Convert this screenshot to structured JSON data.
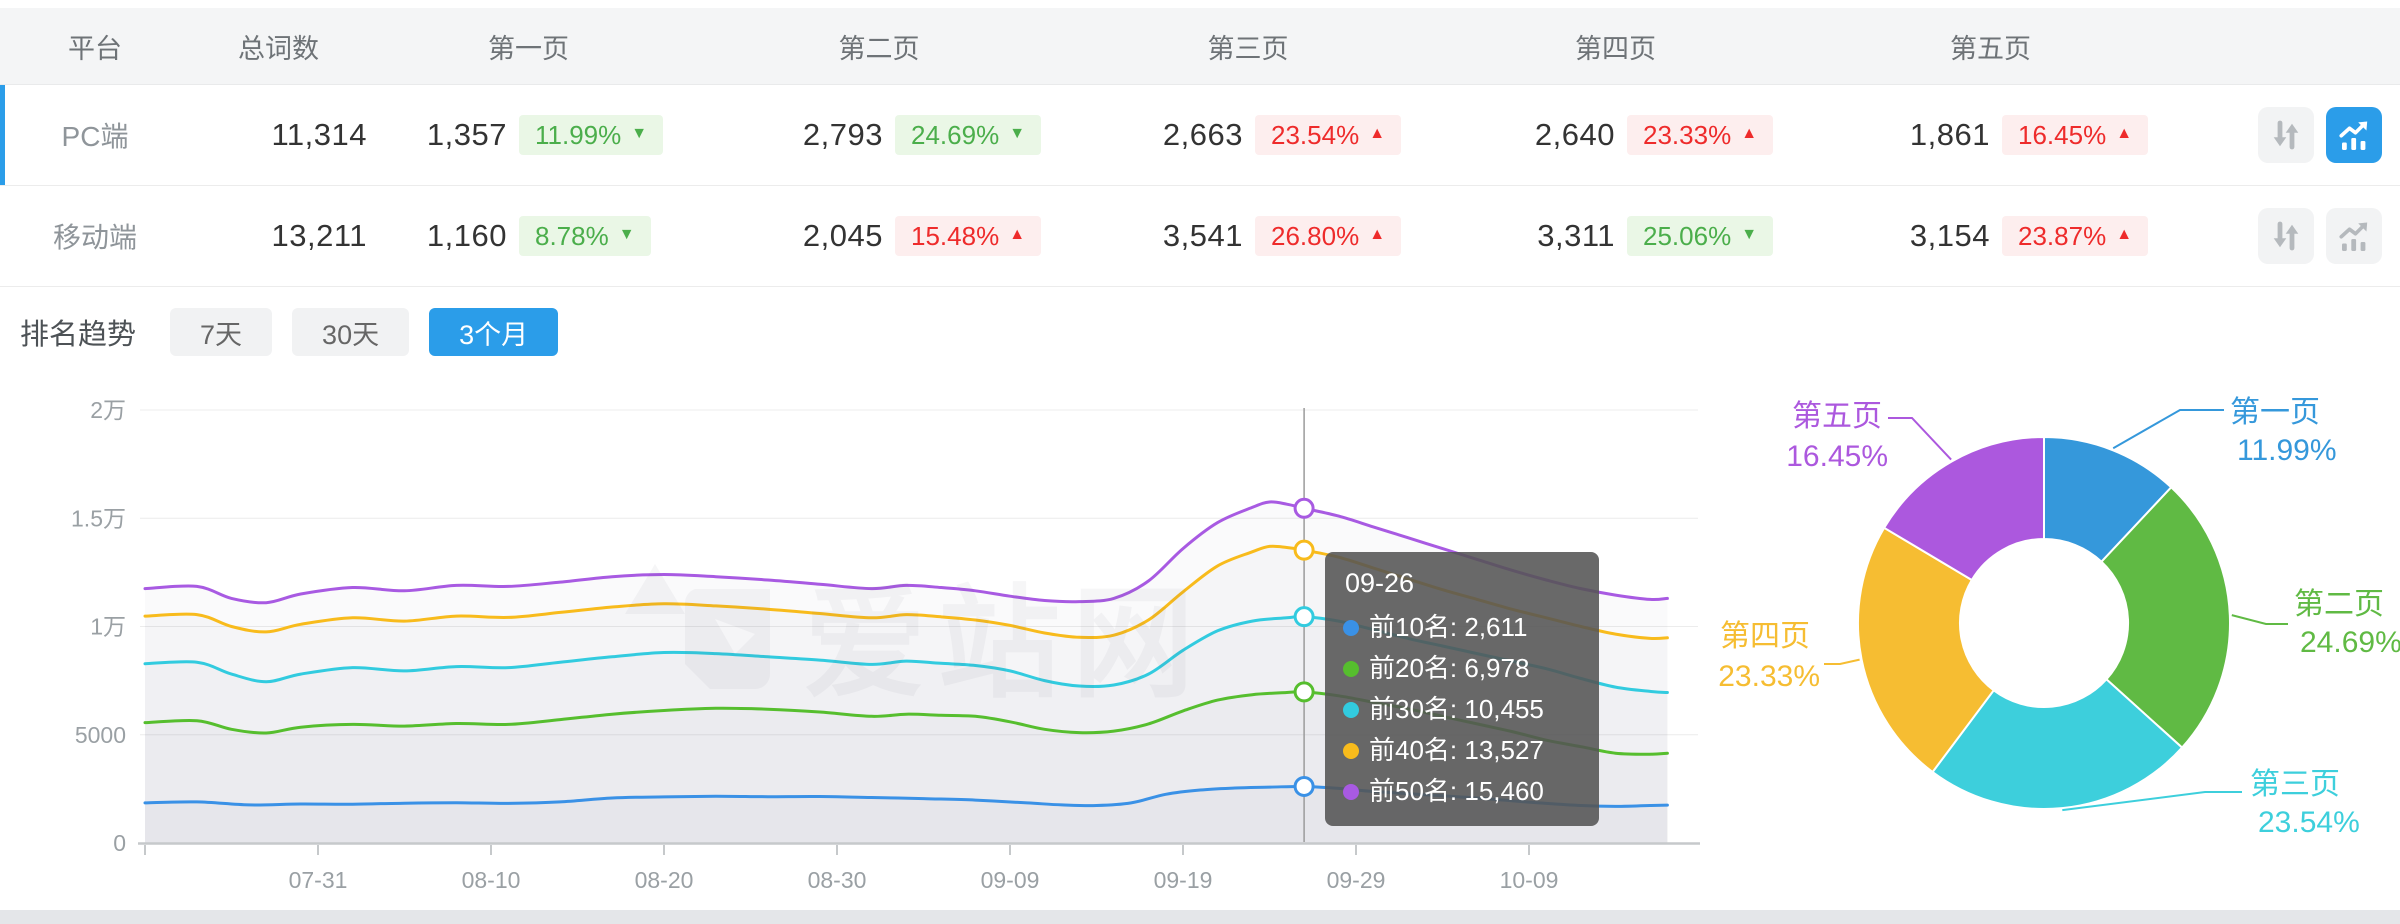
{
  "table": {
    "headers": [
      "平台",
      "总词数",
      "第一页",
      "第二页",
      "第三页",
      "第四页",
      "第五页"
    ],
    "rows": [
      {
        "platform": "PC端",
        "total": "11,314",
        "selected": true,
        "trend_active": true,
        "pages": [
          {
            "value": "1,357",
            "percent": "11.99%",
            "direction": "down",
            "tone": "green"
          },
          {
            "value": "2,793",
            "percent": "24.69%",
            "direction": "down",
            "tone": "green"
          },
          {
            "value": "2,663",
            "percent": "23.54%",
            "direction": "up",
            "tone": "red"
          },
          {
            "value": "2,640",
            "percent": "23.33%",
            "direction": "up",
            "tone": "red"
          },
          {
            "value": "1,861",
            "percent": "16.45%",
            "direction": "up",
            "tone": "red"
          }
        ]
      },
      {
        "platform": "移动端",
        "total": "13,211",
        "selected": false,
        "trend_active": false,
        "pages": [
          {
            "value": "1,160",
            "percent": "8.78%",
            "direction": "down",
            "tone": "green"
          },
          {
            "value": "2,045",
            "percent": "15.48%",
            "direction": "up",
            "tone": "red"
          },
          {
            "value": "3,541",
            "percent": "26.80%",
            "direction": "up",
            "tone": "red"
          },
          {
            "value": "3,311",
            "percent": "25.06%",
            "direction": "down",
            "tone": "green"
          },
          {
            "value": "3,154",
            "percent": "23.87%",
            "direction": "up",
            "tone": "red"
          }
        ]
      }
    ],
    "icons": {
      "sort": "sort-arrows-icon",
      "trend": "trend-chart-icon"
    }
  },
  "trend": {
    "title": "排名趋势",
    "tabs": [
      {
        "label": "7天",
        "active": false
      },
      {
        "label": "30天",
        "active": false
      },
      {
        "label": "3个月",
        "active": true
      }
    ]
  },
  "tooltip": {
    "date": "09-26",
    "items": [
      {
        "label": "前10名",
        "value": "2,611",
        "color": "#3a91e6"
      },
      {
        "label": "前20名",
        "value": "6,978",
        "color": "#56be2e"
      },
      {
        "label": "前30名",
        "value": "10,455",
        "color": "#32cbdf"
      },
      {
        "label": "前40名",
        "value": "13,527",
        "color": "#f8bb1c"
      },
      {
        "label": "前50名",
        "value": "15,460",
        "color": "#a85ae2"
      }
    ]
  },
  "watermark": "爱站网",
  "colors": {
    "accent_blue": "#2b9de9",
    "badge_green_text": "#4bae4b",
    "badge_green_bg": "#eaf7e6",
    "badge_red_text": "#ee2b2b",
    "badge_red_bg": "#fdeeee",
    "axis_text": "#9aa0a4",
    "grid_line": "#ececec"
  },
  "chart_data": [
    {
      "type": "line",
      "title": "排名趋势 (3个月)",
      "ylim": [
        0,
        20000
      ],
      "y_ticks": [
        "0",
        "5000",
        "1万",
        "1.5万",
        "2万"
      ],
      "y_tick_values": [
        0,
        5000,
        10000,
        15000,
        20000
      ],
      "x_ticks": [
        "07-31",
        "08-10",
        "08-20",
        "08-30",
        "09-09",
        "09-19",
        "09-29",
        "10-09"
      ],
      "x_tick_days": [
        10,
        20,
        30,
        40,
        50,
        60,
        70,
        80
      ],
      "grid": true,
      "highlight": {
        "date": "09-26",
        "day": 67,
        "values": [
          2611,
          6978,
          10455,
          13527,
          15460
        ]
      },
      "series": [
        {
          "name": "前10名",
          "color": "#3a91e6",
          "points": [
            [
              0,
              1850
            ],
            [
              3,
              1900
            ],
            [
              6,
              1760
            ],
            [
              9,
              1800
            ],
            [
              12,
              1790
            ],
            [
              15,
              1840
            ],
            [
              18,
              1860
            ],
            [
              21,
              1830
            ],
            [
              24,
              1900
            ],
            [
              27,
              2080
            ],
            [
              30,
              2130
            ],
            [
              33,
              2160
            ],
            [
              36,
              2140
            ],
            [
              39,
              2150
            ],
            [
              42,
              2100
            ],
            [
              45,
              2050
            ],
            [
              48,
              1980
            ],
            [
              51,
              1850
            ],
            [
              53,
              1760
            ],
            [
              55,
              1730
            ],
            [
              57,
              1850
            ],
            [
              59,
              2250
            ],
            [
              61,
              2450
            ],
            [
              63,
              2540
            ],
            [
              65,
              2580
            ],
            [
              67,
              2611
            ],
            [
              69,
              2520
            ],
            [
              71,
              2380
            ],
            [
              73,
              2280
            ],
            [
              75,
              2180
            ],
            [
              77,
              2080
            ],
            [
              79,
              1950
            ],
            [
              81,
              1830
            ],
            [
              83,
              1730
            ],
            [
              85,
              1690
            ],
            [
              87,
              1730
            ],
            [
              88,
              1750
            ]
          ]
        },
        {
          "name": "前20名",
          "color": "#56be2e",
          "points": [
            [
              0,
              5560
            ],
            [
              3,
              5650
            ],
            [
              5,
              5250
            ],
            [
              7,
              5080
            ],
            [
              9,
              5350
            ],
            [
              12,
              5480
            ],
            [
              15,
              5400
            ],
            [
              18,
              5520
            ],
            [
              21,
              5480
            ],
            [
              24,
              5700
            ],
            [
              27,
              5950
            ],
            [
              30,
              6120
            ],
            [
              33,
              6220
            ],
            [
              36,
              6180
            ],
            [
              39,
              6050
            ],
            [
              42,
              5850
            ],
            [
              44,
              5950
            ],
            [
              46,
              5900
            ],
            [
              48,
              5850
            ],
            [
              50,
              5600
            ],
            [
              52,
              5250
            ],
            [
              54,
              5100
            ],
            [
              56,
              5170
            ],
            [
              58,
              5500
            ],
            [
              60,
              6100
            ],
            [
              62,
              6600
            ],
            [
              64,
              6850
            ],
            [
              66,
              6950
            ],
            [
              67,
              6978
            ],
            [
              69,
              6800
            ],
            [
              71,
              6500
            ],
            [
              73,
              6200
            ],
            [
              75,
              5850
            ],
            [
              77,
              5500
            ],
            [
              79,
              5150
            ],
            [
              81,
              4750
            ],
            [
              83,
              4450
            ],
            [
              85,
              4150
            ],
            [
              87,
              4100
            ],
            [
              88,
              4150
            ]
          ]
        },
        {
          "name": "前30名",
          "color": "#32cbdf",
          "points": [
            [
              0,
              8280
            ],
            [
              3,
              8350
            ],
            [
              5,
              7800
            ],
            [
              7,
              7450
            ],
            [
              9,
              7800
            ],
            [
              12,
              8100
            ],
            [
              15,
              7950
            ],
            [
              18,
              8150
            ],
            [
              21,
              8100
            ],
            [
              24,
              8350
            ],
            [
              27,
              8600
            ],
            [
              30,
              8800
            ],
            [
              33,
              8750
            ],
            [
              36,
              8600
            ],
            [
              39,
              8450
            ],
            [
              42,
              8250
            ],
            [
              44,
              8400
            ],
            [
              46,
              8300
            ],
            [
              48,
              8200
            ],
            [
              50,
              7950
            ],
            [
              52,
              7500
            ],
            [
              54,
              7250
            ],
            [
              56,
              7300
            ],
            [
              58,
              7800
            ],
            [
              60,
              8900
            ],
            [
              62,
              9800
            ],
            [
              64,
              10250
            ],
            [
              66,
              10400
            ],
            [
              67,
              10455
            ],
            [
              69,
              10250
            ],
            [
              71,
              9850
            ],
            [
              73,
              9450
            ],
            [
              75,
              9100
            ],
            [
              77,
              8750
            ],
            [
              79,
              8400
            ],
            [
              81,
              8050
            ],
            [
              83,
              7600
            ],
            [
              85,
              7200
            ],
            [
              87,
              7000
            ],
            [
              88,
              6950
            ]
          ]
        },
        {
          "name": "前40名",
          "color": "#f8bb1c",
          "points": [
            [
              0,
              10480
            ],
            [
              3,
              10550
            ],
            [
              5,
              10000
            ],
            [
              7,
              9750
            ],
            [
              9,
              10100
            ],
            [
              12,
              10400
            ],
            [
              15,
              10250
            ],
            [
              18,
              10480
            ],
            [
              21,
              10420
            ],
            [
              24,
              10650
            ],
            [
              27,
              10900
            ],
            [
              30,
              11050
            ],
            [
              33,
              10950
            ],
            [
              36,
              10800
            ],
            [
              39,
              10600
            ],
            [
              42,
              10400
            ],
            [
              44,
              10550
            ],
            [
              46,
              10450
            ],
            [
              48,
              10300
            ],
            [
              50,
              10050
            ],
            [
              52,
              9700
            ],
            [
              54,
              9500
            ],
            [
              56,
              9600
            ],
            [
              58,
              10300
            ],
            [
              60,
              11600
            ],
            [
              62,
              12800
            ],
            [
              64,
              13450
            ],
            [
              65,
              13700
            ],
            [
              66,
              13650
            ],
            [
              67,
              13527
            ],
            [
              69,
              13200
            ],
            [
              71,
              12700
            ],
            [
              73,
              12200
            ],
            [
              75,
              11700
            ],
            [
              77,
              11250
            ],
            [
              79,
              10800
            ],
            [
              81,
              10400
            ],
            [
              83,
              10000
            ],
            [
              85,
              9650
            ],
            [
              87,
              9450
            ],
            [
              88,
              9480
            ]
          ]
        },
        {
          "name": "前50名",
          "color": "#a85ae2",
          "points": [
            [
              0,
              11750
            ],
            [
              3,
              11850
            ],
            [
              5,
              11300
            ],
            [
              7,
              11100
            ],
            [
              9,
              11500
            ],
            [
              12,
              11800
            ],
            [
              15,
              11650
            ],
            [
              18,
              11900
            ],
            [
              21,
              11850
            ],
            [
              24,
              12050
            ],
            [
              27,
              12300
            ],
            [
              30,
              12400
            ],
            [
              33,
              12300
            ],
            [
              36,
              12150
            ],
            [
              39,
              11950
            ],
            [
              42,
              11750
            ],
            [
              44,
              11900
            ],
            [
              46,
              11800
            ],
            [
              48,
              11650
            ],
            [
              50,
              11400
            ],
            [
              52,
              11200
            ],
            [
              54,
              11150
            ],
            [
              56,
              11300
            ],
            [
              58,
              12100
            ],
            [
              60,
              13600
            ],
            [
              62,
              14800
            ],
            [
              64,
              15500
            ],
            [
              65,
              15750
            ],
            [
              66,
              15650
            ],
            [
              67,
              15460
            ],
            [
              69,
              15100
            ],
            [
              71,
              14600
            ],
            [
              73,
              14100
            ],
            [
              75,
              13600
            ],
            [
              77,
              13100
            ],
            [
              79,
              12600
            ],
            [
              81,
              12150
            ],
            [
              83,
              11750
            ],
            [
              85,
              11450
            ],
            [
              87,
              11250
            ],
            [
              88,
              11300
            ]
          ]
        }
      ]
    },
    {
      "type": "pie",
      "title": "排名页面分布",
      "donut": true,
      "segments": [
        {
          "label": "第一页",
          "percent": 11.99,
          "color": "#3598db"
        },
        {
          "label": "第二页",
          "percent": 24.69,
          "color": "#60ba44"
        },
        {
          "label": "第三页",
          "percent": 23.54,
          "color": "#3dcfdc"
        },
        {
          "label": "第四页",
          "percent": 23.33,
          "color": "#f6bd32"
        },
        {
          "label": "第五页",
          "percent": 16.45,
          "color": "#ac58de"
        }
      ]
    }
  ]
}
